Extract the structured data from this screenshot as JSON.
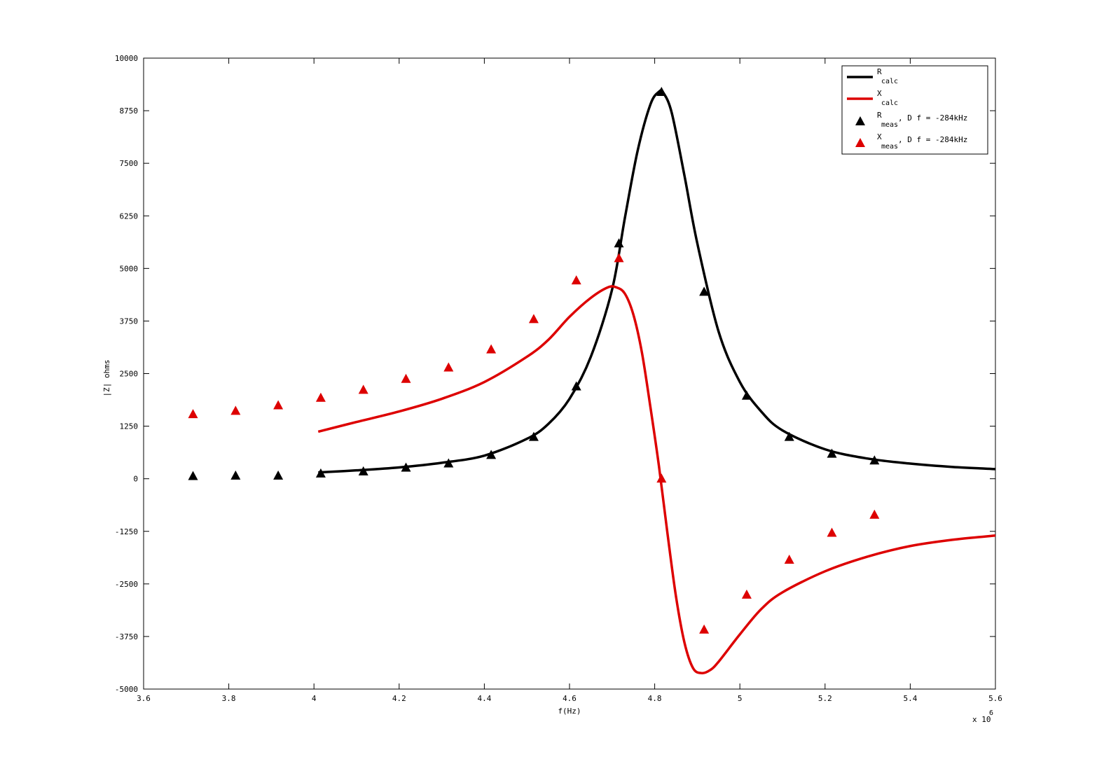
{
  "chart_data": {
    "type": "line",
    "title": "",
    "xlabel": "f(Hz)",
    "ylabel": "|Z| ohms",
    "x_multiplier_label": "x 10",
    "x_multiplier_exponent": "6",
    "xlim": [
      3.6,
      5.6
    ],
    "ylim": [
      -5000,
      10000
    ],
    "xticks": [
      "3.6",
      "3.8",
      "4",
      "4.2",
      "4.4",
      "4.6",
      "4.8",
      "5",
      "5.2",
      "5.4",
      "5.6"
    ],
    "xtick_values": [
      3.6,
      3.8,
      4.0,
      4.2,
      4.4,
      4.6,
      4.8,
      5.0,
      5.2,
      5.4,
      5.6
    ],
    "yticks": [
      "10000",
      "8750",
      "7500",
      "6250",
      "5000",
      "3750",
      "2500",
      "1250",
      "0",
      "-1250",
      "-2500",
      "-3750",
      "-5000"
    ],
    "ytick_values": [
      10000,
      8750,
      7500,
      6250,
      5000,
      3750,
      2500,
      1250,
      0,
      -1250,
      -2500,
      -3750,
      -5000
    ],
    "grid": false,
    "legend_position": "top-right",
    "series": [
      {
        "legend_main": "R",
        "legend_sub": "calc",
        "legend_suffix": "",
        "kind": "line",
        "color": "#000000",
        "x": [
          4.01,
          4.1,
          4.2,
          4.3,
          4.4,
          4.5,
          4.55,
          4.6,
          4.65,
          4.7,
          4.73,
          4.76,
          4.79,
          4.81,
          4.82,
          4.84,
          4.87,
          4.9,
          4.95,
          5.0,
          5.05,
          5.1,
          5.2,
          5.3,
          5.4,
          5.5,
          5.6
        ],
        "y": [
          150,
          200,
          270,
          380,
          550,
          950,
          1300,
          1900,
          2900,
          4500,
          6200,
          7800,
          8900,
          9200,
          9180,
          8700,
          7200,
          5600,
          3500,
          2300,
          1600,
          1150,
          700,
          480,
          360,
          280,
          230
        ]
      },
      {
        "legend_main": "X",
        "legend_sub": "calc",
        "legend_suffix": "",
        "kind": "line",
        "color": "#dd0000",
        "x": [
          4.01,
          4.1,
          4.2,
          4.3,
          4.4,
          4.5,
          4.55,
          4.6,
          4.65,
          4.69,
          4.71,
          4.73,
          4.75,
          4.77,
          4.79,
          4.81,
          4.83,
          4.85,
          4.87,
          4.89,
          4.91,
          4.93,
          4.95,
          5.0,
          5.05,
          5.1,
          5.2,
          5.3,
          5.4,
          5.5,
          5.6
        ],
        "y": [
          1120,
          1350,
          1600,
          1900,
          2300,
          2900,
          3300,
          3850,
          4300,
          4550,
          4550,
          4400,
          3900,
          3000,
          1700,
          300,
          -1300,
          -2800,
          -3900,
          -4500,
          -4620,
          -4550,
          -4350,
          -3700,
          -3100,
          -2700,
          -2200,
          -1850,
          -1600,
          -1450,
          -1350
        ]
      },
      {
        "legend_main": "R",
        "legend_sub": "meas",
        "legend_suffix": ", D f = -284kHz",
        "kind": "marker",
        "color": "#000000",
        "x": [
          3.716,
          3.816,
          3.916,
          4.016,
          4.116,
          4.216,
          4.316,
          4.416,
          4.516,
          4.616,
          4.716,
          4.816,
          4.916,
          5.016,
          5.116,
          5.216,
          5.316
        ],
        "y": [
          70,
          80,
          80,
          130,
          180,
          270,
          370,
          570,
          1000,
          2200,
          5600,
          9200,
          4450,
          1980,
          1000,
          600,
          440
        ]
      },
      {
        "legend_main": "X",
        "legend_sub": "meas",
        "legend_suffix": ", D f = -284kHz",
        "kind": "marker",
        "color": "#dd0000",
        "x": [
          3.716,
          3.816,
          3.916,
          4.016,
          4.116,
          4.216,
          4.316,
          4.416,
          4.516,
          4.616,
          4.716,
          4.816,
          4.916,
          5.016,
          5.116,
          5.216,
          5.316
        ],
        "y": [
          1540,
          1620,
          1750,
          1930,
          2120,
          2380,
          2650,
          3080,
          3800,
          4720,
          5250,
          10,
          -3580,
          -2750,
          -1920,
          -1280,
          -850
        ]
      }
    ]
  }
}
